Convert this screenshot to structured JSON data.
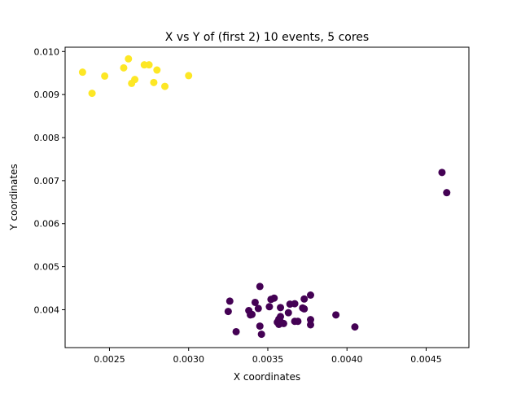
{
  "chart_data": {
    "type": "scatter",
    "title": "X vs Y of (first 2) 10 events, 5 cores",
    "xlabel": "X coordinates",
    "ylabel": "Y coordinates",
    "xlim": [
      0.00222,
      0.00477
    ],
    "ylim": [
      0.00312,
      0.0101
    ],
    "xticks": [
      "0.0025",
      "0.0030",
      "0.0035",
      "0.0040",
      "0.0045"
    ],
    "xtick_values": [
      0.0025,
      0.003,
      0.0035,
      0.004,
      0.0045
    ],
    "yticks": [
      "0.004",
      "0.005",
      "0.006",
      "0.007",
      "0.008",
      "0.009",
      "0.010"
    ],
    "ytick_values": [
      0.004,
      0.005,
      0.006,
      0.007,
      0.008,
      0.009,
      0.01
    ],
    "grid": false,
    "legend": "none",
    "series": [
      {
        "color": "#fde725",
        "points": [
          [
            0.00233,
            0.00952
          ],
          [
            0.00239,
            0.00903
          ],
          [
            0.00247,
            0.00943
          ],
          [
            0.00259,
            0.00962
          ],
          [
            0.00262,
            0.00983
          ],
          [
            0.00264,
            0.00926
          ],
          [
            0.00266,
            0.00935
          ],
          [
            0.00272,
            0.00969
          ],
          [
            0.00275,
            0.00969
          ],
          [
            0.00278,
            0.00928
          ],
          [
            0.0028,
            0.00957
          ],
          [
            0.00285,
            0.00919
          ],
          [
            0.003,
            0.00944
          ]
        ]
      },
      {
        "color": "#440154",
        "points": [
          [
            0.0046,
            0.00719
          ],
          [
            0.00463,
            0.00672
          ],
          [
            0.00325,
            0.00396
          ],
          [
            0.00326,
            0.0042
          ],
          [
            0.0033,
            0.00349
          ],
          [
            0.00338,
            0.00398
          ],
          [
            0.00339,
            0.00388
          ],
          [
            0.0034,
            0.00389
          ],
          [
            0.00342,
            0.00417
          ],
          [
            0.00344,
            0.00403
          ],
          [
            0.00345,
            0.00454
          ],
          [
            0.00345,
            0.00362
          ],
          [
            0.00346,
            0.00343
          ],
          [
            0.00351,
            0.00407
          ],
          [
            0.00352,
            0.00424
          ],
          [
            0.00354,
            0.00427
          ],
          [
            0.00356,
            0.00371
          ],
          [
            0.00357,
            0.00378
          ],
          [
            0.00357,
            0.00366
          ],
          [
            0.00358,
            0.00405
          ],
          [
            0.00358,
            0.00372
          ],
          [
            0.00358,
            0.00384
          ],
          [
            0.0036,
            0.00368
          ],
          [
            0.00363,
            0.00393
          ],
          [
            0.00364,
            0.00413
          ],
          [
            0.00367,
            0.00414
          ],
          [
            0.00367,
            0.00373
          ],
          [
            0.00369,
            0.00373
          ],
          [
            0.00372,
            0.00404
          ],
          [
            0.00373,
            0.00425
          ],
          [
            0.00373,
            0.00402
          ],
          [
            0.00377,
            0.00434
          ],
          [
            0.00377,
            0.00377
          ],
          [
            0.00377,
            0.00365
          ],
          [
            0.00393,
            0.00388
          ],
          [
            0.00405,
            0.0036
          ]
        ]
      }
    ]
  }
}
